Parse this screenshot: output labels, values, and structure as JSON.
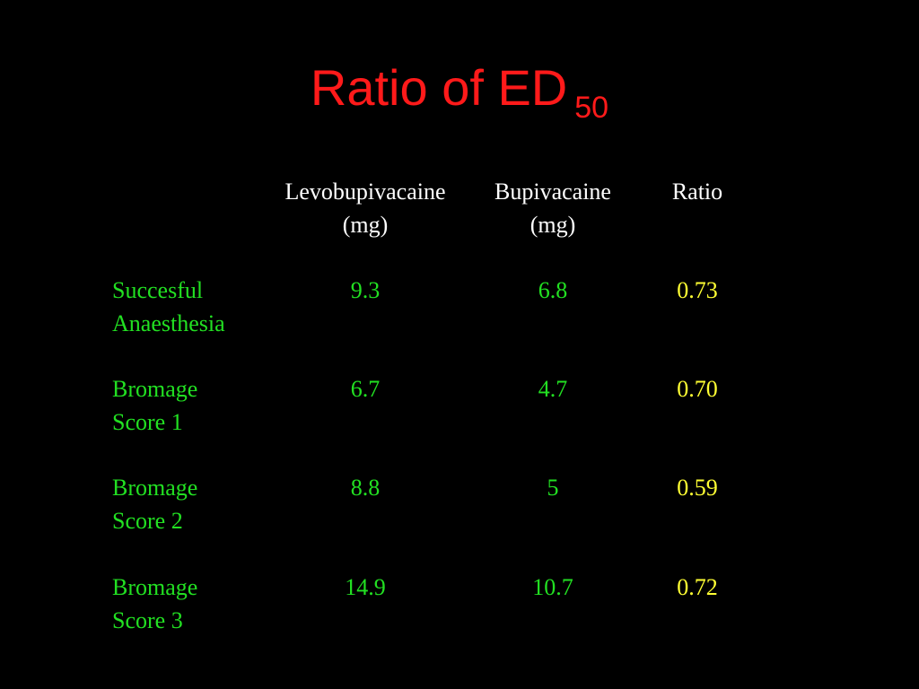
{
  "title": {
    "main": "Ratio of ED",
    "subscript": "50"
  },
  "headers": [
    {
      "line1": "Levobupivacaine",
      "line2": "(mg)"
    },
    {
      "line1": "Bupivacaine",
      "line2": "(mg)"
    },
    {
      "line1": "Ratio",
      "line2": ""
    }
  ],
  "rows": [
    {
      "label1": "Succesful",
      "label2": "Anaesthesia",
      "levo": "9.3",
      "bupi": "6.8",
      "ratio": "0.73"
    },
    {
      "label1": "Bromage",
      "label2": "Score 1",
      "levo": "6.7",
      "bupi": "4.7",
      "ratio": "0.70"
    },
    {
      "label1": "Bromage",
      "label2": "Score 2",
      "levo": "8.8",
      "bupi": "5",
      "ratio": "0.59"
    },
    {
      "label1": "Bromage",
      "label2": "Score 3",
      "levo": "14.9",
      "bupi": "10.7",
      "ratio": "0.72"
    }
  ],
  "colors": {
    "background": "#000000",
    "title": "#ff1a1a",
    "header": "#ffffff",
    "values": "#22e022",
    "ratio": "#ffff33"
  }
}
